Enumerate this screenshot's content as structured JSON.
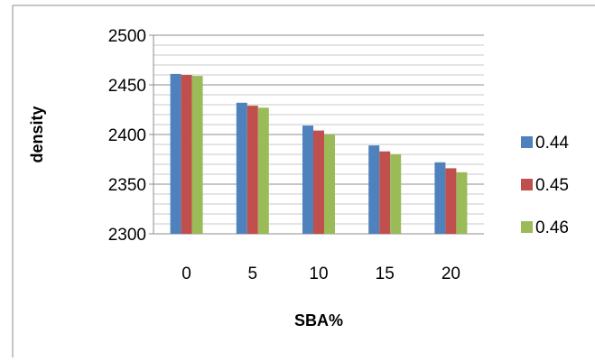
{
  "chart_data": {
    "type": "bar",
    "xlabel": "SBA%",
    "ylabel": "density",
    "categories": [
      "0",
      "5",
      "10",
      "15",
      "20"
    ],
    "ylim": [
      2300,
      2500
    ],
    "yticks": [
      2300,
      2350,
      2400,
      2450,
      2500
    ],
    "minor_grid_step": 10,
    "grid": true,
    "legend_position": "right",
    "series": [
      {
        "name": "0.44",
        "color": "#4F81BD",
        "values": [
          2461,
          2432,
          2409,
          2389,
          2372
        ]
      },
      {
        "name": "0.45",
        "color": "#C0504D",
        "values": [
          2460,
          2429,
          2404,
          2383,
          2366
        ]
      },
      {
        "name": "0.46",
        "color": "#9BBB59",
        "values": [
          2459,
          2427,
          2400,
          2380,
          2362
        ]
      }
    ]
  }
}
